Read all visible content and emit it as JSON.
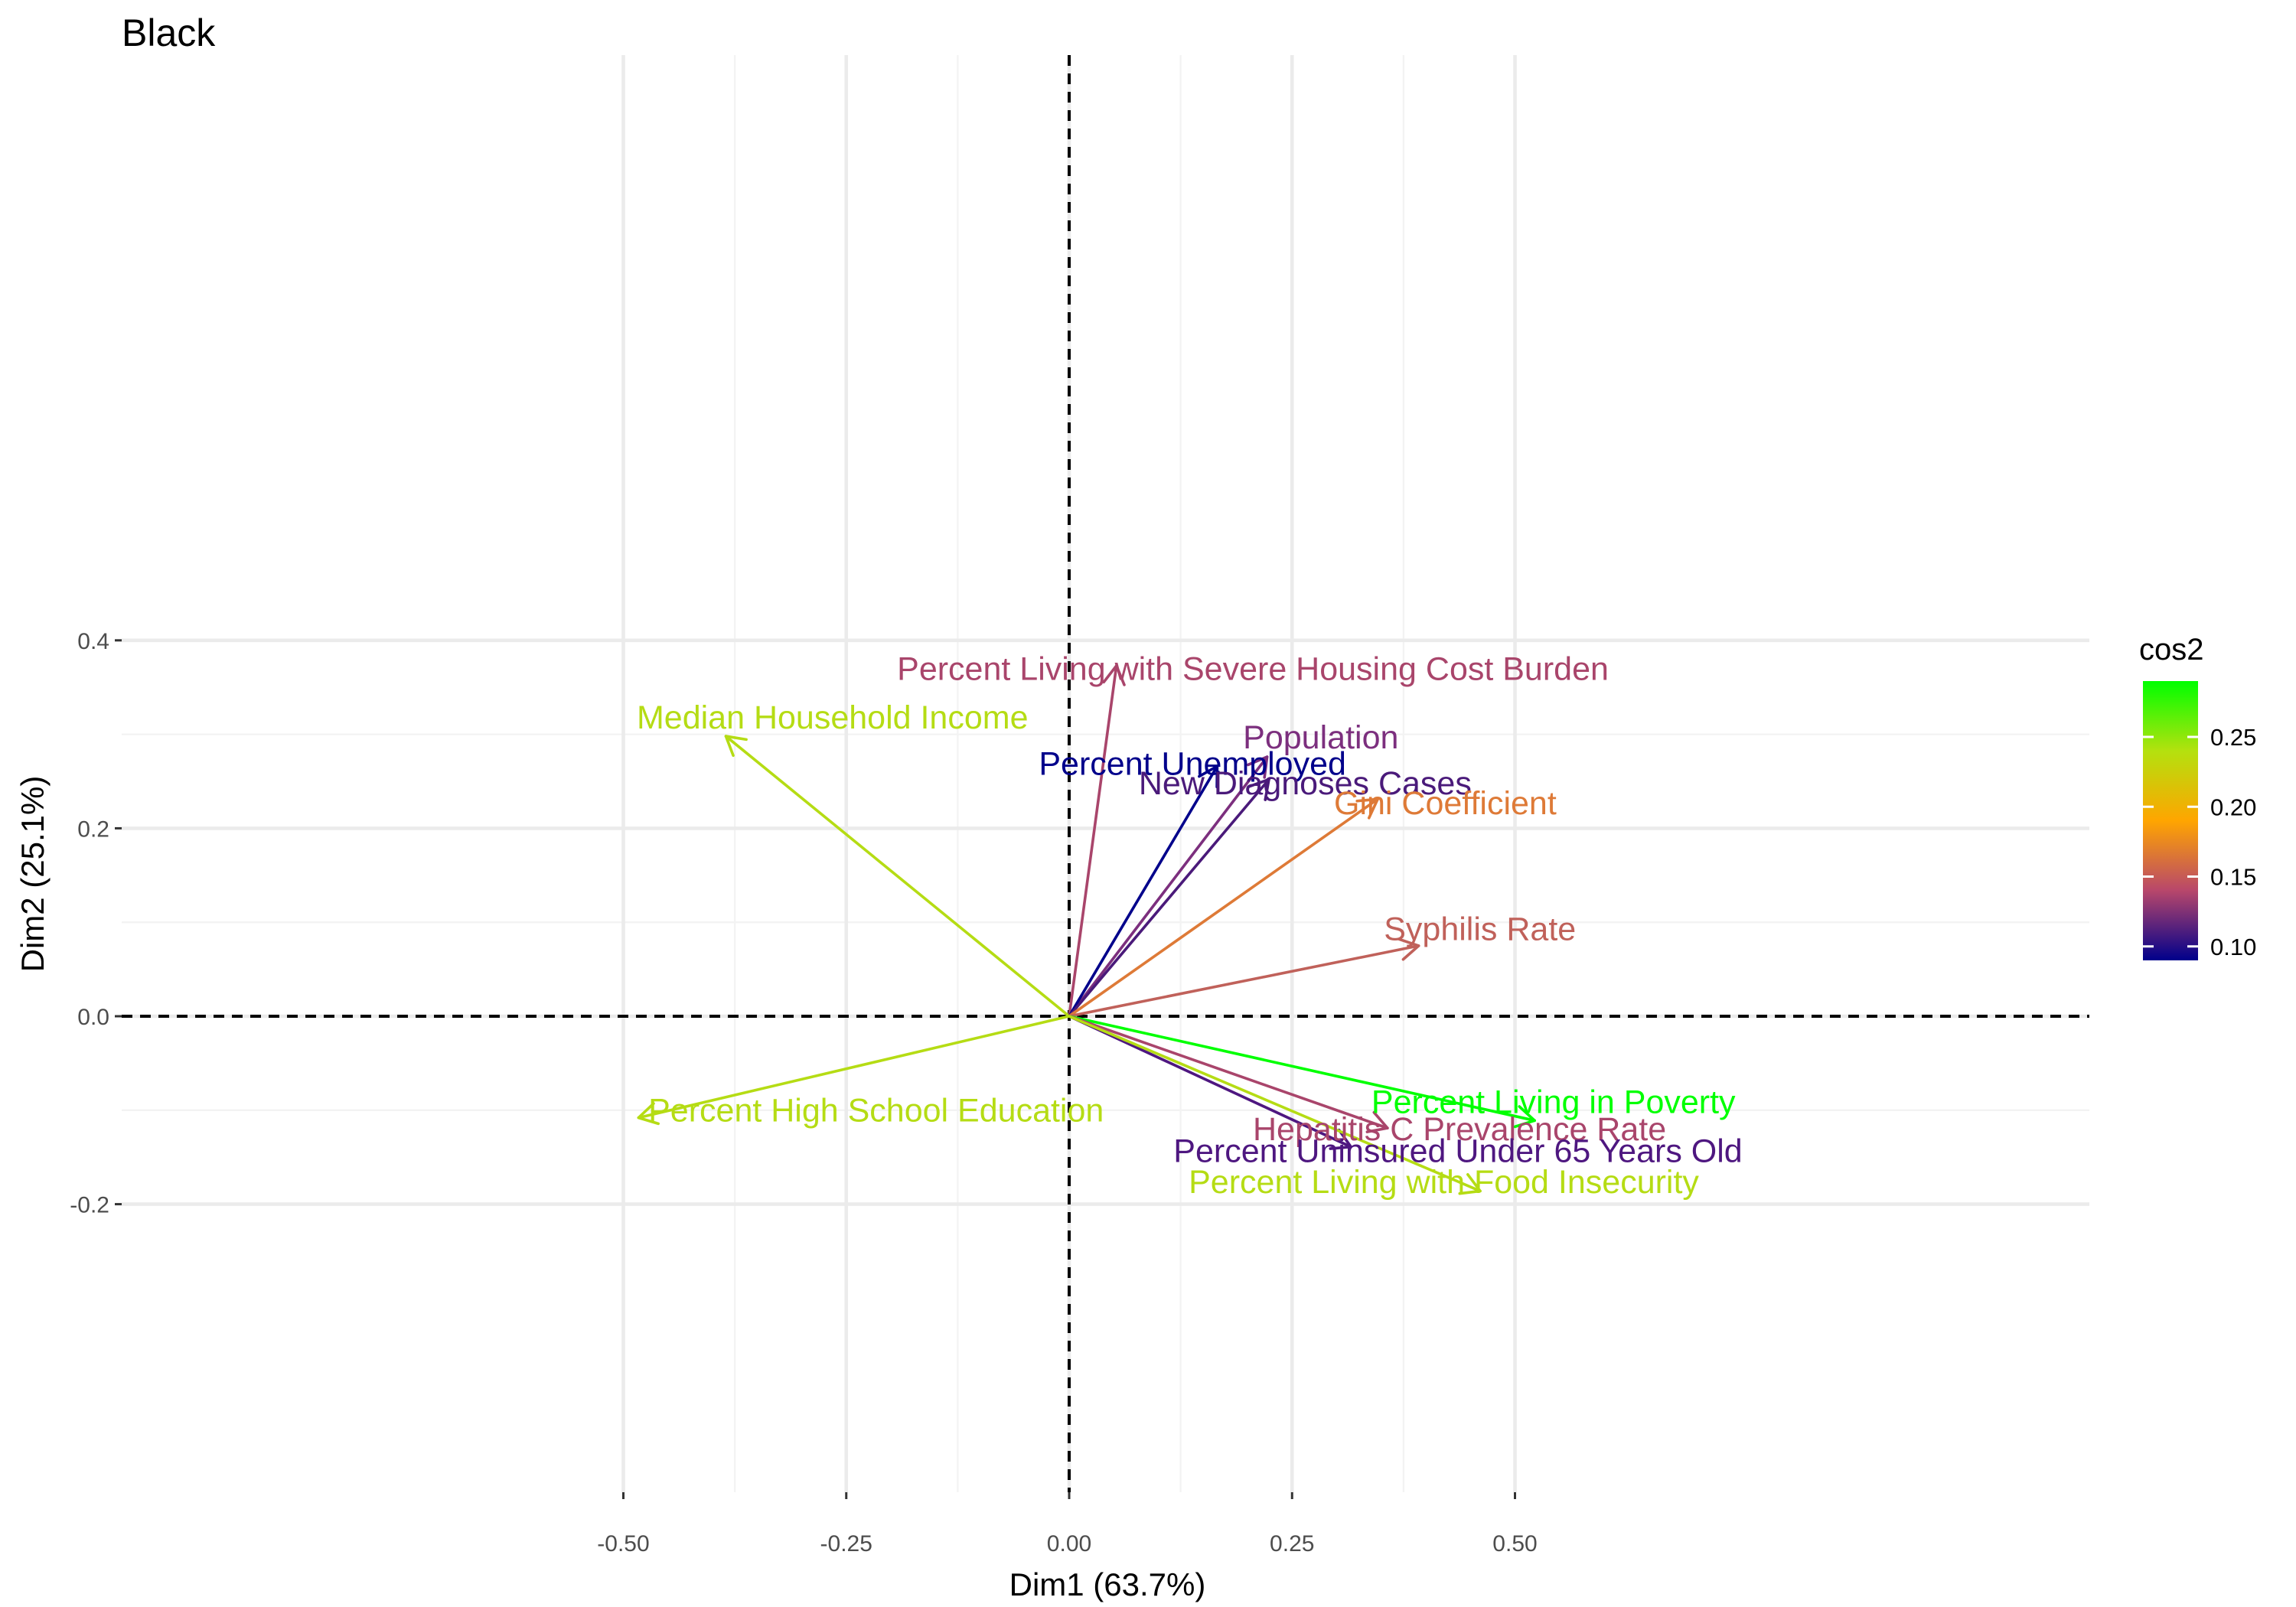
{
  "chart_data": {
    "type": "biplot-variables",
    "title": "Black",
    "xlabel": "Dim1 (63.7%)",
    "ylabel": "Dim2 (25.1%)",
    "xlim": [
      -0.5,
      0.57
    ],
    "ylim": [
      -0.2,
      0.4
    ],
    "x_ticks": [
      -0.5,
      -0.25,
      0,
      0.25,
      0.5
    ],
    "x_tick_labels": [
      "-0.50",
      "-0.25",
      "0.00",
      "0.25",
      "0.50"
    ],
    "y_ticks": [
      -0.2,
      0,
      0.2,
      0.4
    ],
    "y_tick_labels": [
      "-0.2",
      "0.0",
      "0.2",
      "0.4"
    ],
    "grid": true,
    "reference_lines": {
      "x": 0,
      "y": 0,
      "style": "dashed"
    },
    "color_variable": "cos2",
    "legend": {
      "title": "cos2",
      "position": "right",
      "ticks": [
        0.1,
        0.15,
        0.2,
        0.25
      ],
      "tick_labels": [
        "0.10",
        "0.15",
        "0.20",
        "0.25"
      ],
      "range": [
        0.09,
        0.29
      ],
      "gradient_colors": [
        "#00008b",
        "#b8476b",
        "#ffa500",
        "#b4e10e",
        "#00ff00"
      ]
    },
    "variables": [
      {
        "name": "Percent Living with Severe Housing Cost Burden",
        "x": 0.053,
        "y": 0.373,
        "color": "#a9456b",
        "label_x": -0.193,
        "label_y": 0.358
      },
      {
        "name": "Median Household Income",
        "x": -0.385,
        "y": 0.298,
        "color": "#b5dc14",
        "label_x": -0.485,
        "label_y": 0.306
      },
      {
        "name": "Population",
        "x": 0.222,
        "y": 0.276,
        "color": "#7c2f7e",
        "label_x": 0.195,
        "label_y": 0.285
      },
      {
        "name": "Percent Unemployed",
        "x": 0.166,
        "y": 0.266,
        "color": "#00008b",
        "label_x": -0.034,
        "label_y": 0.257
      },
      {
        "name": "New Diagnoses Cases",
        "x": 0.224,
        "y": 0.252,
        "color": "#4a1a7a",
        "label_x": 0.078,
        "label_y": 0.236
      },
      {
        "name": "Gini Coefficient",
        "x": 0.346,
        "y": 0.231,
        "color": "#de7a37",
        "label_x": 0.297,
        "label_y": 0.215
      },
      {
        "name": "Syphilis Rate",
        "x": 0.392,
        "y": 0.075,
        "color": "#c0615a",
        "label_x": 0.353,
        "label_y": 0.081
      },
      {
        "name": "Percent Living in Poverty",
        "x": 0.522,
        "y": -0.111,
        "color": "#00ff00",
        "label_x": 0.339,
        "label_y": -0.103
      },
      {
        "name": "Hepatitis C Prevalence Rate",
        "x": 0.357,
        "y": -0.119,
        "color": "#a9456b",
        "label_x": 0.206,
        "label_y": -0.132
      },
      {
        "name": "Percent Uninsured Under 65 Years Old",
        "x": 0.316,
        "y": -0.139,
        "color": "#4e1780",
        "label_x": 0.117,
        "label_y": -0.155
      },
      {
        "name": "Percent Living with Food Insecurity",
        "x": 0.461,
        "y": -0.186,
        "color": "#b5dc14",
        "label_x": 0.134,
        "label_y": -0.188
      },
      {
        "name": "Percent High School Education",
        "x": -0.483,
        "y": -0.108,
        "color": "#b5dc14",
        "label_x": -0.472,
        "label_y": -0.112
      }
    ]
  }
}
